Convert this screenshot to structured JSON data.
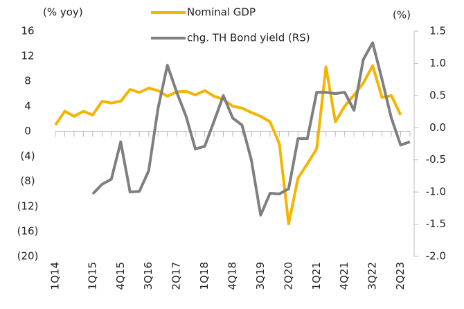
{
  "chart_data": {
    "type": "line",
    "y_label": "(% yoy)",
    "y2_label": "(%)",
    "categories": [
      "1Q14",
      null,
      null,
      null,
      "1Q15",
      null,
      null,
      "4Q15",
      null,
      null,
      "3Q16",
      null,
      null,
      "2Q17",
      null,
      null,
      "1Q18",
      null,
      null,
      "4Q18",
      null,
      null,
      "3Q19",
      null,
      null,
      "2Q20",
      null,
      null,
      "1Q21",
      null,
      null,
      "4Q21",
      null,
      null,
      "3Q22",
      null,
      null,
      "2Q23",
      null
    ],
    "series": [
      {
        "name": "Nominal GDP",
        "color": "#f5b400",
        "axis": "y",
        "values": [
          1.0,
          3.2,
          2.4,
          3.2,
          2.6,
          4.8,
          4.5,
          4.8,
          6.7,
          6.2,
          6.9,
          6.5,
          5.6,
          6.3,
          6.4,
          5.8,
          6.5,
          5.6,
          5.1,
          4.0,
          3.7,
          3.0,
          2.4,
          1.5,
          -2.0,
          -14.8,
          -7.5,
          -5.2,
          -2.8,
          10.3,
          1.5,
          4.0,
          5.8,
          7.7,
          10.5,
          5.4,
          5.7,
          2.6,
          null
        ]
      },
      {
        "name": "chg. TH Bond yield (RS)",
        "color": "#7f7f7f",
        "axis": "y2",
        "values": [
          null,
          null,
          null,
          null,
          -1.03,
          -0.88,
          -0.8,
          -0.22,
          -1.0,
          -0.99,
          -0.67,
          0.3,
          0.97,
          0.55,
          0.18,
          -0.33,
          -0.29,
          0.1,
          0.5,
          0.15,
          0.04,
          -0.5,
          -1.36,
          -1.02,
          -1.03,
          -0.95,
          -0.17,
          -0.17,
          0.55,
          0.55,
          0.53,
          0.55,
          0.27,
          1.06,
          1.32,
          0.75,
          0.15,
          -0.27,
          -0.22
        ]
      }
    ],
    "ylim": [
      -20,
      16
    ],
    "yticks": [
      16,
      12,
      8,
      4,
      0,
      {
        "value": -4,
        "label": "(4)"
      },
      {
        "value": -8,
        "label": "(8)"
      },
      {
        "value": -12,
        "label": "(12)"
      },
      {
        "value": -16,
        "label": "(16)"
      },
      {
        "value": -20,
        "label": "(20)"
      }
    ],
    "y2lim": [
      -2.0,
      1.5
    ],
    "y2ticks": [
      1.5,
      {
        "value": 1.0,
        "label": "1.0"
      },
      0.5,
      {
        "value": 0.0,
        "label": "0.0"
      },
      -0.5,
      {
        "value": -1.0,
        "label": "-1.0"
      },
      -1.5,
      {
        "value": -2.0,
        "label": "-2.0"
      }
    ],
    "grid": false
  }
}
